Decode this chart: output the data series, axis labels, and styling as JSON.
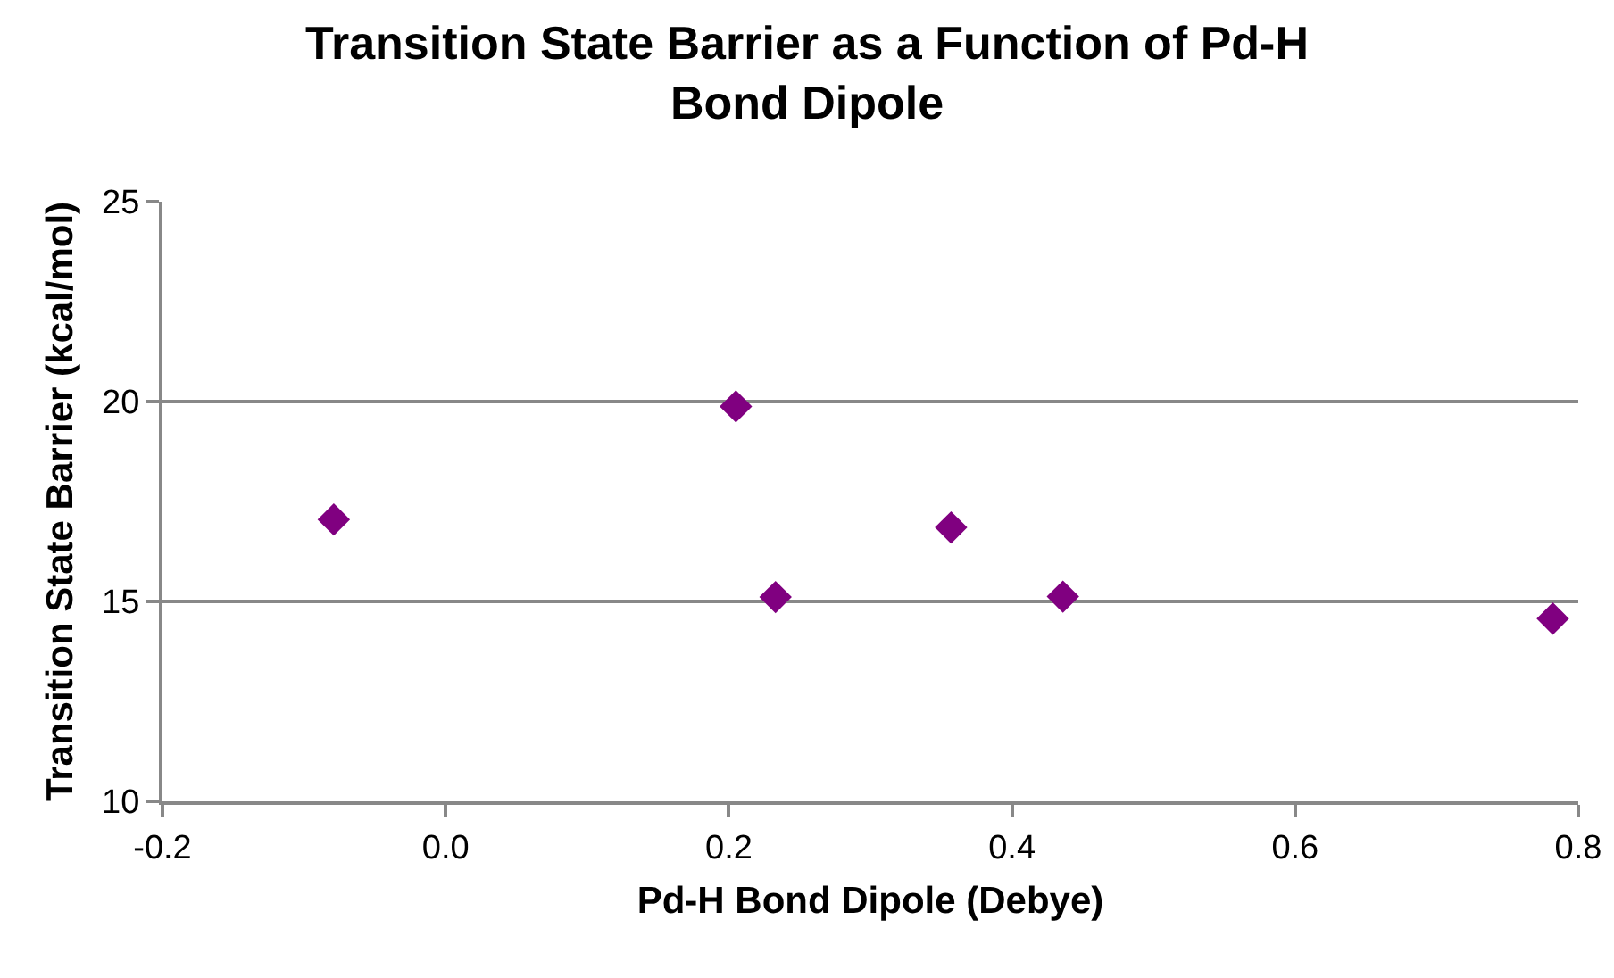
{
  "chart_data": {
    "type": "scatter",
    "title": "Transition State Barrier as a Function of Pd-H Bond Dipole",
    "xlabel": "Pd-H Bond Dipole (Debye)",
    "ylabel": "Transition State Barrier (kcal/mol)",
    "x": [
      -0.079,
      0.205,
      0.233,
      0.357,
      0.436,
      0.782
    ],
    "series": [
      {
        "color": "#800080",
        "values": [
          17.05,
          19.88,
          15.11,
          16.85,
          15.12,
          14.57
        ]
      }
    ],
    "xlim": [
      -0.2,
      0.8
    ],
    "xticks": [
      {
        "value": -0.2,
        "label": "-0.2"
      },
      {
        "value": 0,
        "label": "0.0"
      },
      {
        "value": 0.2,
        "label": "0.2"
      },
      {
        "value": 0.4,
        "label": "0.4"
      },
      {
        "value": 0.6,
        "label": "0.6"
      },
      {
        "value": 0.8,
        "label": "0.8"
      }
    ],
    "ylim": [
      10,
      25
    ],
    "yticks": [
      10,
      15,
      20,
      25
    ],
    "grid": "y",
    "marker": "diamond"
  }
}
